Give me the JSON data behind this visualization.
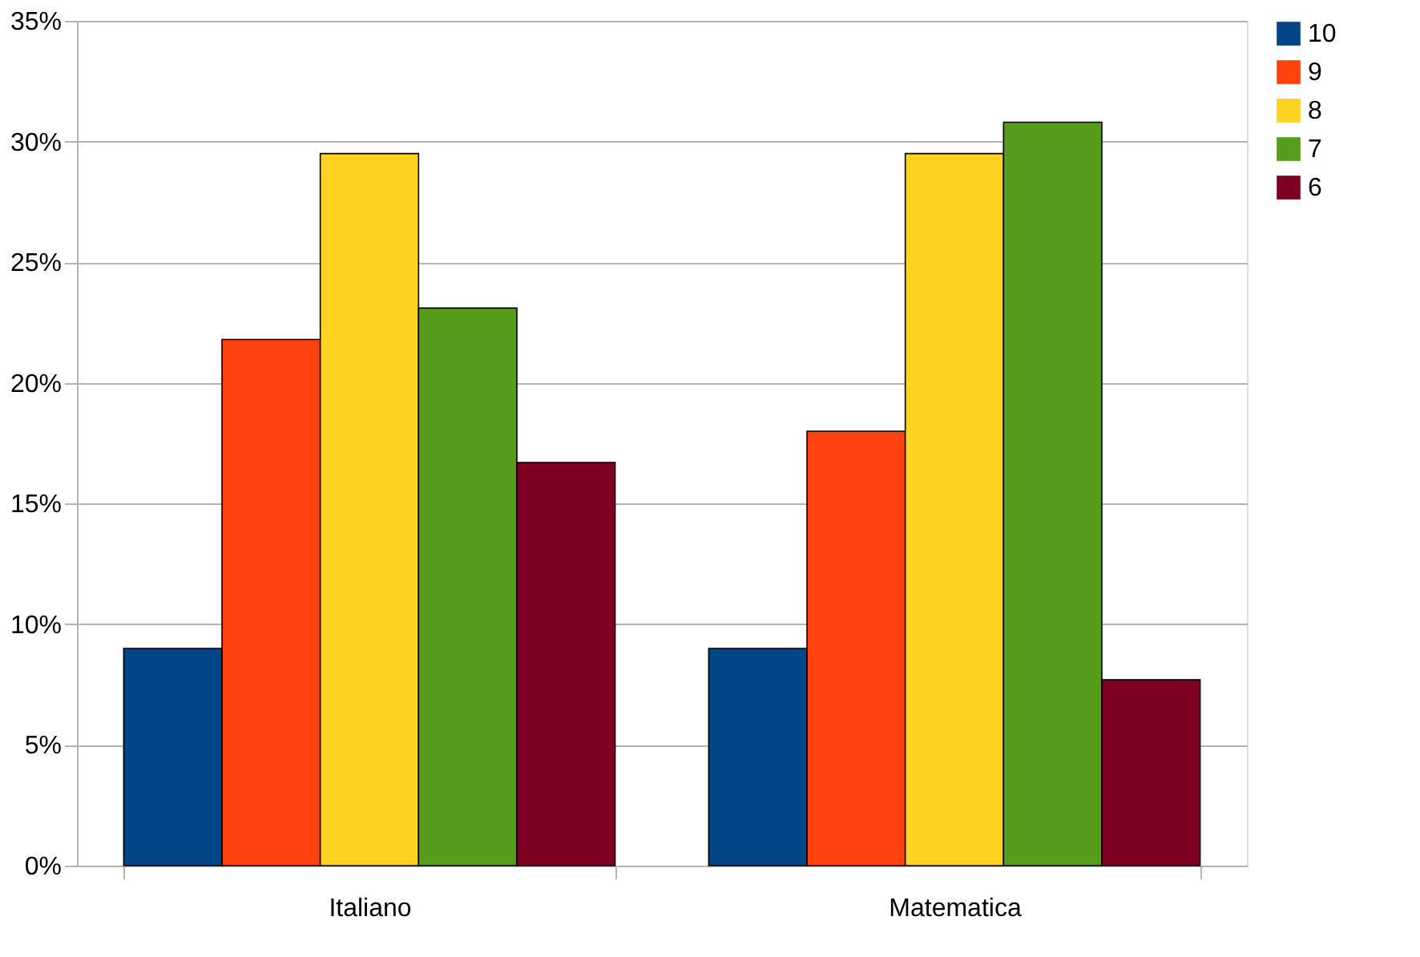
{
  "chart_data": {
    "type": "bar",
    "categories": [
      "Italiano",
      "Matematica"
    ],
    "series": [
      {
        "name": "10",
        "color": "#004586",
        "values": [
          9.0,
          9.0
        ]
      },
      {
        "name": "9",
        "color": "#ff420e",
        "values": [
          21.8,
          18.0
        ]
      },
      {
        "name": "8",
        "color": "#ffd320",
        "values": [
          29.5,
          29.5
        ]
      },
      {
        "name": "7",
        "color": "#579d1c",
        "values": [
          23.1,
          30.8
        ]
      },
      {
        "name": "6",
        "color": "#7e0021",
        "values": [
          16.7,
          7.7
        ]
      }
    ],
    "ylim": [
      0,
      35
    ],
    "yticks": [
      {
        "value": 0,
        "label": "0%"
      },
      {
        "value": 5,
        "label": "5%"
      },
      {
        "value": 10,
        "label": "10%"
      },
      {
        "value": 15,
        "label": "15%"
      },
      {
        "value": 20,
        "label": "20%"
      },
      {
        "value": 25,
        "label": "25%"
      },
      {
        "value": 30,
        "label": "30%"
      },
      {
        "value": 35,
        "label": "35%"
      }
    ],
    "grid": "y",
    "legend": "right"
  }
}
